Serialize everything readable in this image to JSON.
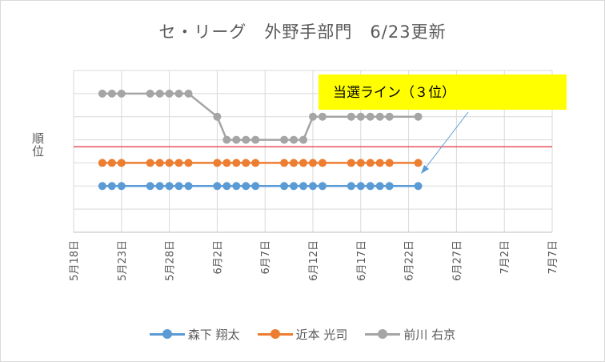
{
  "chart_data": {
    "type": "line",
    "title": "セ・リーグ　外野手部門　6/23更新",
    "ylabel": "順位",
    "xlabel": "",
    "x_ticks": [
      "5月18日",
      "5月23日",
      "5月28日",
      "6月2日",
      "6月7日",
      "6月12日",
      "6月17日",
      "6月22日",
      "6月27日",
      "7月2日",
      "7月7日"
    ],
    "xlim": [
      "5月18日",
      "7月7日"
    ],
    "ylim": [
      0,
      7
    ],
    "y_inverted": true,
    "y_tick_labels_shown": false,
    "grid": true,
    "legend_position": "bottom",
    "threshold": {
      "label": "当選ライン（３位）",
      "value": 3.3,
      "color": "#e0303c"
    },
    "series": [
      {
        "name": "森下 翔太",
        "color": "#5b9bd5",
        "x": [
          "5月21日",
          "5月22日",
          "5月23日",
          "5月26日",
          "5月27日",
          "5月28日",
          "5月29日",
          "5月30日",
          "6月2日",
          "6月3日",
          "6月4日",
          "6月5日",
          "6月6日",
          "6月9日",
          "6月10日",
          "6月11日",
          "6月12日",
          "6月13日",
          "6月16日",
          "6月17日",
          "6月18日",
          "6月19日",
          "6月20日",
          "6月23日"
        ],
        "values": [
          5,
          5,
          5,
          5,
          5,
          5,
          5,
          5,
          5,
          5,
          5,
          5,
          5,
          5,
          5,
          5,
          5,
          5,
          5,
          5,
          5,
          5,
          5,
          5
        ]
      },
      {
        "name": "近本 光司",
        "color": "#ed7d31",
        "x": [
          "5月21日",
          "5月22日",
          "5月23日",
          "5月26日",
          "5月27日",
          "5月28日",
          "5月29日",
          "5月30日",
          "6月2日",
          "6月3日",
          "6月4日",
          "6月5日",
          "6月6日",
          "6月9日",
          "6月10日",
          "6月11日",
          "6月12日",
          "6月13日",
          "6月16日",
          "6月17日",
          "6月18日",
          "6月19日",
          "6月20日",
          "6月23日"
        ],
        "values": [
          4,
          4,
          4,
          4,
          4,
          4,
          4,
          4,
          4,
          4,
          4,
          4,
          4,
          4,
          4,
          4,
          4,
          4,
          4,
          4,
          4,
          4,
          4,
          4
        ]
      },
      {
        "name": "前川 右京",
        "color": "#a5a5a5",
        "x": [
          "5月21日",
          "5月22日",
          "5月23日",
          "5月26日",
          "5月27日",
          "5月28日",
          "5月29日",
          "5月30日",
          "6月2日",
          "6月3日",
          "6月4日",
          "6月5日",
          "6月6日",
          "6月9日",
          "6月10日",
          "6月11日",
          "6月12日",
          "6月13日",
          "6月16日",
          "6月17日",
          "6月18日",
          "6月19日",
          "6月20日",
          "6月23日"
        ],
        "values": [
          1,
          1,
          1,
          1,
          1,
          1,
          1,
          1,
          2,
          3,
          3,
          3,
          3,
          3,
          3,
          3,
          2,
          2,
          2,
          2,
          2,
          2,
          2,
          2
        ]
      }
    ]
  }
}
